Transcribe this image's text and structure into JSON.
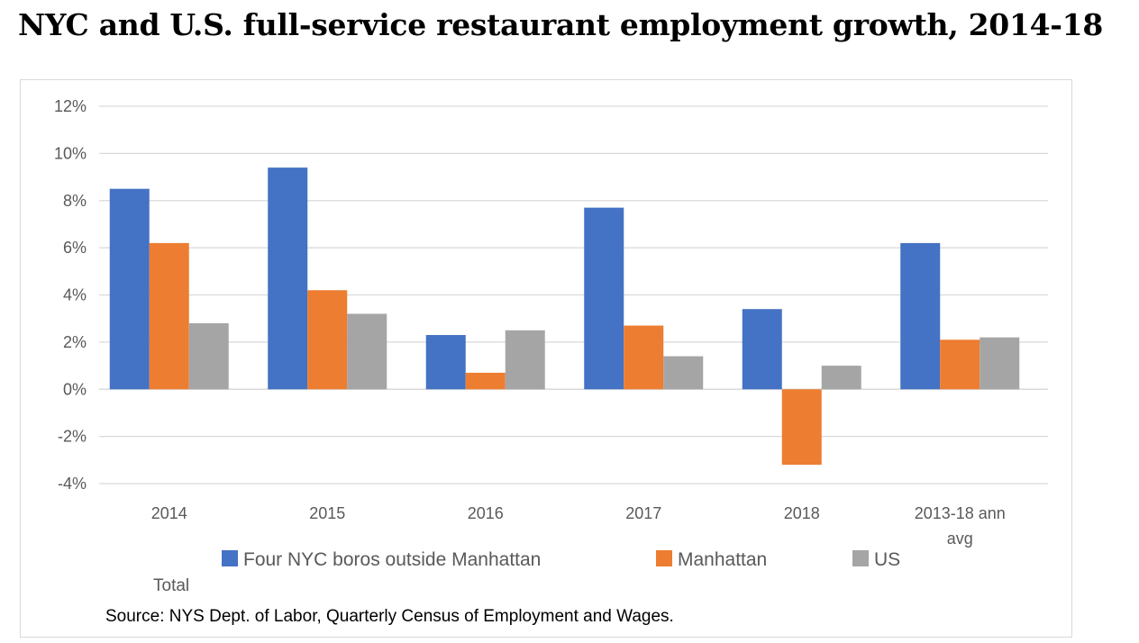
{
  "chart_data": {
    "type": "bar",
    "title": "NYC and U.S. full-service restaurant employment growth, 2014-18",
    "categories": [
      "2014",
      "2015",
      "2016",
      "2017",
      "2018",
      "2013-18 ann avg"
    ],
    "series": [
      {
        "name": "Four NYC boros outside Manhattan",
        "color": "#4472c4",
        "values": [
          8.5,
          9.4,
          2.3,
          7.7,
          3.4,
          6.2
        ]
      },
      {
        "name": "Manhattan",
        "color": "#ed7d31",
        "values": [
          6.2,
          4.2,
          0.7,
          2.7,
          -3.2,
          2.1
        ]
      },
      {
        "name": "US",
        "color": "#a5a5a5",
        "values": [
          2.8,
          3.2,
          2.5,
          1.4,
          1.0,
          2.2
        ]
      }
    ],
    "ylim": [
      -4,
      12
    ],
    "yticks": [
      -4,
      -2,
      0,
      2,
      4,
      6,
      8,
      10,
      12
    ],
    "ytick_labels": [
      "-4%",
      "-2%",
      "0%",
      "2%",
      "4%",
      "6%",
      "8%",
      "10%",
      "12%"
    ],
    "grid": true,
    "legend_position": "bottom"
  },
  "stray_label": "Total",
  "source": "Source: NYS Dept. of Labor, Quarterly Census of Employment and Wages."
}
